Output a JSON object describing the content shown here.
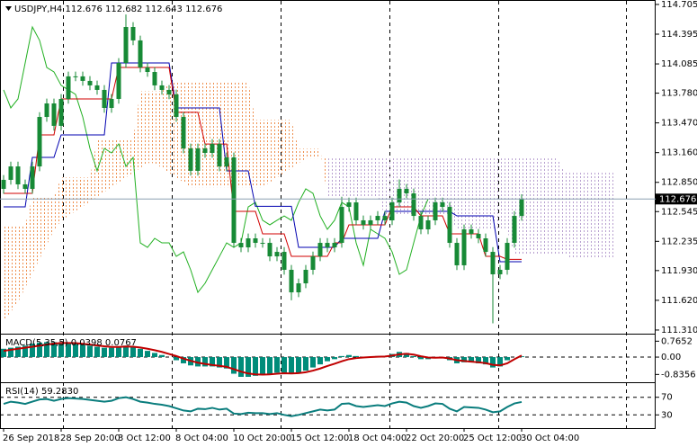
{
  "chart_data": [
    {
      "type": "candlestick",
      "title": "USDJPY,H4  112.676 112.682 112.643 112.676",
      "categories": [
        "26 Sep 2018",
        null,
        null,
        null,
        null,
        null,
        null,
        null,
        "28 Sep 20:00",
        null,
        null,
        null,
        null,
        null,
        null,
        null,
        "3 Oct 12:00",
        null,
        null,
        null,
        null,
        null,
        null,
        null,
        "8 Oct 04:00",
        null,
        null,
        null,
        null,
        null,
        null,
        null,
        "10 Oct 20:00",
        null,
        null,
        null,
        null,
        null,
        null,
        null,
        "15 Oct 12:00",
        null,
        null,
        null,
        null,
        null,
        null,
        null,
        "18 Oct 04:00",
        null,
        null,
        null,
        null,
        null,
        null,
        null,
        "22 Oct 20:00",
        null,
        null,
        null,
        null,
        null,
        null,
        null,
        "25 Oct 12:00",
        null,
        null,
        null,
        null,
        null,
        null,
        null,
        "30 Oct 04:00",
        null,
        null,
        null,
        null,
        null,
        null,
        null,
        null,
        null,
        null,
        null,
        null,
        null
      ],
      "open": [
        112.782,
        112.876,
        113.016,
        112.829,
        112.782,
        113.016,
        113.532,
        113.673,
        113.439,
        113.72,
        113.955,
        113.955,
        113.908,
        113.861,
        113.814,
        113.626,
        113.72,
        114.095,
        114.47,
        114.33,
        114.048,
        114.001,
        113.861,
        113.814,
        113.767,
        113.532,
        113.204,
        112.97,
        113.204,
        113.157,
        113.251,
        113.016,
        113.11,
        112.219,
        112.172,
        112.266,
        112.219,
        112.219,
        112.078,
        112.125,
        111.938,
        111.703,
        111.797,
        111.938,
        112.078,
        112.219,
        112.172,
        112.219,
        112.594,
        112.641,
        112.454,
        112.407,
        112.454,
        112.5,
        112.454,
        112.641,
        112.782,
        112.735,
        112.5,
        112.36,
        112.454,
        112.641,
        112.594,
        112.219,
        111.985,
        112.36,
        112.313,
        112.266,
        112.125,
        111.891,
        111.938,
        112.219,
        112.5,
        null,
        null,
        null,
        null,
        null,
        null,
        null,
        null,
        null,
        null,
        null,
        null,
        null
      ],
      "high": [
        112.926,
        113.066,
        113.066,
        112.879,
        113.066,
        113.582,
        113.723,
        113.723,
        113.77,
        114.005,
        114.005,
        114.005,
        113.958,
        113.911,
        113.864,
        113.77,
        114.145,
        114.6,
        114.52,
        114.38,
        114.098,
        114.051,
        113.911,
        113.864,
        113.817,
        113.582,
        113.254,
        113.254,
        113.254,
        113.301,
        113.301,
        113.16,
        113.16,
        112.269,
        112.316,
        112.316,
        112.269,
        112.269,
        112.175,
        112.175,
        111.988,
        111.847,
        111.988,
        112.128,
        112.269,
        112.269,
        112.269,
        112.7,
        112.691,
        112.691,
        112.504,
        112.504,
        112.55,
        112.55,
        112.691,
        112.88,
        112.832,
        112.785,
        112.55,
        112.504,
        112.691,
        112.691,
        112.644,
        112.269,
        112.41,
        112.41,
        112.363,
        112.316,
        112.175,
        111.988,
        112.269,
        112.55,
        112.726,
        null,
        null,
        null,
        null,
        null,
        null,
        null,
        null,
        null,
        null,
        null,
        null,
        null
      ],
      "low": [
        112.732,
        112.826,
        112.779,
        112.732,
        112.732,
        112.966,
        113.482,
        113.389,
        113.389,
        113.67,
        113.905,
        113.858,
        113.811,
        113.764,
        113.576,
        113.576,
        113.67,
        114.045,
        114.28,
        113.998,
        113.951,
        113.811,
        113.764,
        113.717,
        113.482,
        113.154,
        112.92,
        112.92,
        113.107,
        113.107,
        112.966,
        112.966,
        112.169,
        112.122,
        112.122,
        112.169,
        112.169,
        112.028,
        112.028,
        111.888,
        111.62,
        111.653,
        111.747,
        111.888,
        112.028,
        112.122,
        112.122,
        112.169,
        112.544,
        112.404,
        112.357,
        112.357,
        112.404,
        112.404,
        112.404,
        112.591,
        112.685,
        112.45,
        112.31,
        112.31,
        112.404,
        112.544,
        112.169,
        111.935,
        111.935,
        112.263,
        112.216,
        112.075,
        111.38,
        111.841,
        111.888,
        112.169,
        112.45,
        null,
        null,
        null,
        null,
        null,
        null,
        null,
        null,
        null,
        null,
        null,
        null,
        null
      ],
      "close": [
        112.876,
        113.016,
        112.829,
        112.782,
        113.016,
        113.532,
        113.673,
        113.439,
        113.72,
        113.955,
        113.955,
        113.908,
        113.861,
        113.814,
        113.626,
        113.72,
        114.095,
        114.47,
        114.33,
        114.048,
        114.001,
        113.861,
        113.814,
        113.767,
        113.532,
        113.204,
        112.97,
        113.204,
        113.157,
        113.251,
        113.016,
        113.11,
        112.219,
        112.172,
        112.266,
        112.219,
        112.219,
        112.078,
        112.125,
        111.938,
        111.703,
        111.797,
        111.938,
        112.078,
        112.219,
        112.172,
        112.219,
        112.594,
        112.641,
        112.454,
        112.407,
        112.454,
        112.5,
        112.454,
        112.641,
        112.782,
        112.735,
        112.5,
        112.36,
        112.454,
        112.641,
        112.594,
        112.219,
        111.985,
        112.36,
        112.313,
        112.266,
        112.125,
        111.891,
        111.938,
        112.219,
        112.5,
        112.676,
        null,
        null,
        null,
        null,
        null,
        null,
        null,
        null,
        null,
        null,
        null,
        null,
        null
      ],
      "tenkan": [
        112.735,
        112.735,
        112.735,
        112.735,
        112.735,
        113.345,
        113.345,
        113.345,
        113.72,
        113.72,
        113.72,
        113.72,
        113.72,
        113.72,
        113.72,
        113.72,
        114.048,
        114.048,
        114.048,
        114.048,
        114.048,
        114.048,
        114.048,
        114.048,
        113.58,
        113.58,
        113.58,
        113.58,
        113.25,
        113.25,
        113.25,
        113.25,
        112.547,
        112.547,
        112.547,
        112.547,
        112.313,
        112.313,
        112.313,
        112.313,
        112.078,
        112.078,
        112.078,
        112.078,
        112.078,
        112.078,
        112.219,
        112.219,
        112.407,
        112.407,
        112.407,
        112.407,
        112.407,
        112.407,
        112.594,
        112.594,
        112.594,
        112.594,
        112.5,
        112.5,
        112.5,
        112.5,
        112.313,
        112.313,
        112.313,
        112.313,
        112.313,
        112.078,
        112.078,
        112.078,
        112.047,
        112.047,
        112.047,
        null,
        null,
        null,
        null,
        null,
        null,
        null,
        null,
        null,
        null,
        null,
        null,
        null
      ],
      "kijun": [
        112.594,
        112.594,
        112.594,
        112.594,
        113.11,
        113.11,
        113.11,
        113.11,
        113.345,
        113.345,
        113.345,
        113.345,
        113.345,
        113.345,
        113.345,
        114.095,
        114.095,
        114.095,
        114.095,
        114.095,
        114.095,
        114.095,
        114.095,
        114.095,
        113.626,
        113.626,
        113.626,
        113.626,
        113.626,
        113.626,
        113.626,
        112.97,
        112.97,
        112.97,
        112.97,
        112.6,
        112.6,
        112.6,
        112.6,
        112.6,
        112.6,
        112.172,
        112.172,
        112.172,
        112.172,
        112.172,
        112.172,
        112.266,
        112.266,
        112.266,
        112.266,
        112.266,
        112.266,
        112.547,
        112.547,
        112.547,
        112.547,
        112.547,
        112.547,
        112.547,
        112.547,
        112.547,
        112.547,
        112.5,
        112.5,
        112.5,
        112.5,
        112.5,
        112.5,
        112.022,
        112.022,
        112.022,
        112.022,
        null,
        null,
        null,
        null,
        null,
        null,
        null,
        null,
        null,
        null,
        null,
        null,
        null
      ],
      "chikou": [
        113.814,
        113.626,
        113.72,
        114.095,
        114.47,
        114.33,
        114.048,
        114.001,
        113.861,
        113.814,
        113.767,
        113.532,
        113.204,
        112.97,
        113.204,
        113.157,
        113.251,
        113.016,
        113.11,
        112.219,
        112.172,
        112.266,
        112.219,
        112.219,
        112.078,
        112.125,
        111.938,
        111.703,
        111.797,
        111.938,
        112.078,
        112.219,
        112.172,
        112.219,
        112.594,
        112.641,
        112.454,
        112.407,
        112.454,
        112.5,
        112.454,
        112.641,
        112.782,
        112.735,
        112.5,
        112.36,
        112.454,
        112.641,
        112.594,
        112.219,
        111.985,
        112.36,
        112.313,
        112.266,
        112.125,
        111.891,
        111.938,
        112.219,
        112.5,
        112.676,
        null,
        null,
        null,
        null,
        null,
        null,
        null,
        null,
        null,
        null,
        null,
        null,
        null,
        null,
        null,
        null,
        null,
        null,
        null,
        null,
        null,
        null,
        null,
        null,
        null,
        null
      ],
      "span_a": [
        111.4,
        111.5,
        111.6,
        111.75,
        111.9,
        112.05,
        112.2,
        112.35,
        112.45,
        112.5,
        112.55,
        112.6,
        112.65,
        112.7,
        112.75,
        112.8,
        112.85,
        112.9,
        112.95,
        113.0,
        113.05,
        113.05,
        113.0,
        112.95,
        112.9,
        112.85,
        112.8,
        112.8,
        112.8,
        112.8,
        112.8,
        112.8,
        112.8,
        112.8,
        112.8,
        112.8,
        112.8,
        112.85,
        112.9,
        112.95,
        113.0,
        113.05,
        113.1,
        113.1,
        113.1,
        113.1,
        113.1,
        113.1,
        113.1,
        113.1,
        113.1,
        113.1,
        113.1,
        113.1,
        113.1,
        113.1,
        113.1,
        113.1,
        113.1,
        113.1,
        113.1,
        113.1,
        113.1,
        113.1,
        113.1,
        113.1,
        113.1,
        113.1,
        113.1,
        113.1,
        113.1,
        113.1,
        113.1,
        113.1,
        113.1,
        113.1,
        113.1,
        113.1,
        112.95,
        112.95,
        112.95,
        112.95,
        112.95,
        112.95,
        112.95,
        112.95
      ],
      "span_b": [
        112.4,
        112.4,
        112.4,
        112.4,
        112.7,
        112.7,
        112.7,
        112.7,
        112.9,
        112.9,
        112.9,
        112.9,
        112.9,
        113.3,
        113.3,
        113.3,
        113.3,
        113.3,
        113.3,
        113.8,
        113.8,
        113.8,
        113.8,
        113.9,
        113.9,
        113.9,
        113.9,
        113.9,
        113.9,
        113.9,
        113.9,
        113.9,
        113.9,
        113.9,
        113.9,
        113.5,
        113.5,
        113.5,
        113.5,
        113.5,
        113.5,
        113.2,
        113.2,
        113.2,
        113.2,
        112.7,
        112.7,
        112.7,
        112.7,
        112.7,
        112.7,
        112.7,
        112.7,
        112.5,
        112.5,
        112.5,
        112.5,
        112.5,
        112.5,
        112.5,
        112.5,
        112.5,
        112.5,
        112.35,
        112.35,
        112.35,
        112.35,
        112.35,
        112.35,
        112.35,
        112.35,
        112.1,
        112.1,
        112.1,
        112.1,
        112.1,
        112.1,
        112.1,
        112.1,
        112.05,
        112.05,
        112.05,
        112.05,
        112.05,
        112.05,
        112.05
      ],
      "candle_color": "#178a36",
      "tenkan_color": "#d00000",
      "kijun_color": "#0000b0",
      "chikou_color": "#22b022",
      "cloud_down_color": "#ee9050",
      "cloud_up_color": "#b8a0d0",
      "price_line_color": "#8aa0b0",
      "ylim": [
        111.272,
        114.742
      ],
      "yticks": [
        114.705,
        114.395,
        114.085,
        {
          "value": 113.78,
          "label": "113.780"
        },
        {
          "value": 113.47,
          "label": "113.470"
        },
        {
          "value": 113.16,
          "label": "113.160"
        },
        {
          "value": 112.85,
          "label": "112.850"
        },
        112.545,
        112.235,
        {
          "value": 111.93,
          "label": "111.930"
        },
        {
          "value": 111.62,
          "label": "111.620"
        },
        {
          "value": 111.31,
          "label": "111.310"
        }
      ]
    },
    {
      "type": "macd",
      "title": "MACD(5,35,5) 0.0398 0.0767",
      "histogram": [
        0.4,
        0.45,
        0.5,
        0.55,
        0.65,
        0.7,
        0.72,
        0.72,
        0.7,
        0.68,
        0.65,
        0.6,
        0.55,
        0.5,
        0.45,
        0.45,
        0.5,
        0.55,
        0.5,
        0.4,
        0.3,
        0.2,
        0.1,
        0,
        -0.15,
        -0.3,
        -0.4,
        -0.45,
        -0.45,
        -0.45,
        -0.5,
        -0.55,
        -0.8,
        -0.95,
        -0.95,
        -0.9,
        -0.85,
        -0.8,
        -0.75,
        -0.75,
        -0.8,
        -0.75,
        -0.65,
        -0.5,
        -0.35,
        -0.2,
        -0.1,
        0.05,
        0.1,
        0.05,
        0,
        0,
        0.05,
        0.05,
        0.15,
        0.25,
        0.2,
        0.05,
        -0.1,
        -0.1,
        -0.05,
        0,
        -0.15,
        -0.3,
        -0.25,
        -0.25,
        -0.3,
        -0.35,
        -0.5,
        -0.45,
        -0.15,
        0,
        0.0398
      ],
      "signal": [
        0.3,
        0.35,
        0.4,
        0.45,
        0.5,
        0.55,
        0.6,
        0.65,
        0.68,
        0.68,
        0.67,
        0.64,
        0.6,
        0.56,
        0.52,
        0.49,
        0.49,
        0.51,
        0.5,
        0.46,
        0.4,
        0.33,
        0.25,
        0.15,
        0.05,
        -0.07,
        -0.18,
        -0.27,
        -0.33,
        -0.38,
        -0.42,
        -0.47,
        -0.58,
        -0.7,
        -0.79,
        -0.83,
        -0.84,
        -0.83,
        -0.8,
        -0.78,
        -0.79,
        -0.77,
        -0.73,
        -0.65,
        -0.55,
        -0.43,
        -0.32,
        -0.2,
        -0.1,
        -0.05,
        -0.02,
        0,
        0.02,
        0.03,
        0.07,
        0.13,
        0.16,
        0.12,
        0.04,
        -0.02,
        -0.03,
        -0.02,
        -0.07,
        -0.15,
        -0.19,
        -0.22,
        -0.25,
        -0.29,
        -0.37,
        -0.4,
        -0.3,
        -0.1,
        0.0767
      ],
      "histogram_color": "#008c7a",
      "signal_color": "#c00000",
      "ylim": [
        -1.21,
        1.04
      ],
      "yticks": [
        0.7652,
        {
          "value": 0,
          "label": "0.00"
        },
        -0.8356
      ]
    },
    {
      "type": "line",
      "title": "RSI(14) 59.2830",
      "values": [
        55,
        60,
        58,
        55,
        60,
        65,
        66,
        62,
        66,
        68,
        67,
        66,
        64,
        62,
        60,
        62,
        68,
        70,
        66,
        60,
        58,
        55,
        53,
        50,
        45,
        40,
        38,
        44,
        43,
        46,
        42,
        44,
        33,
        32,
        35,
        34,
        34,
        32,
        34,
        30,
        27,
        30,
        34,
        38,
        42,
        40,
        42,
        55,
        56,
        50,
        48,
        50,
        52,
        50,
        56,
        60,
        58,
        50,
        46,
        50,
        56,
        55,
        44,
        38,
        48,
        47,
        46,
        42,
        36,
        38,
        48,
        56,
        59.283
      ],
      "color": "#0a7d7d",
      "grid": true,
      "ylim": [
        0,
        100
      ],
      "yticks": [
        70,
        30
      ]
    }
  ]
}
